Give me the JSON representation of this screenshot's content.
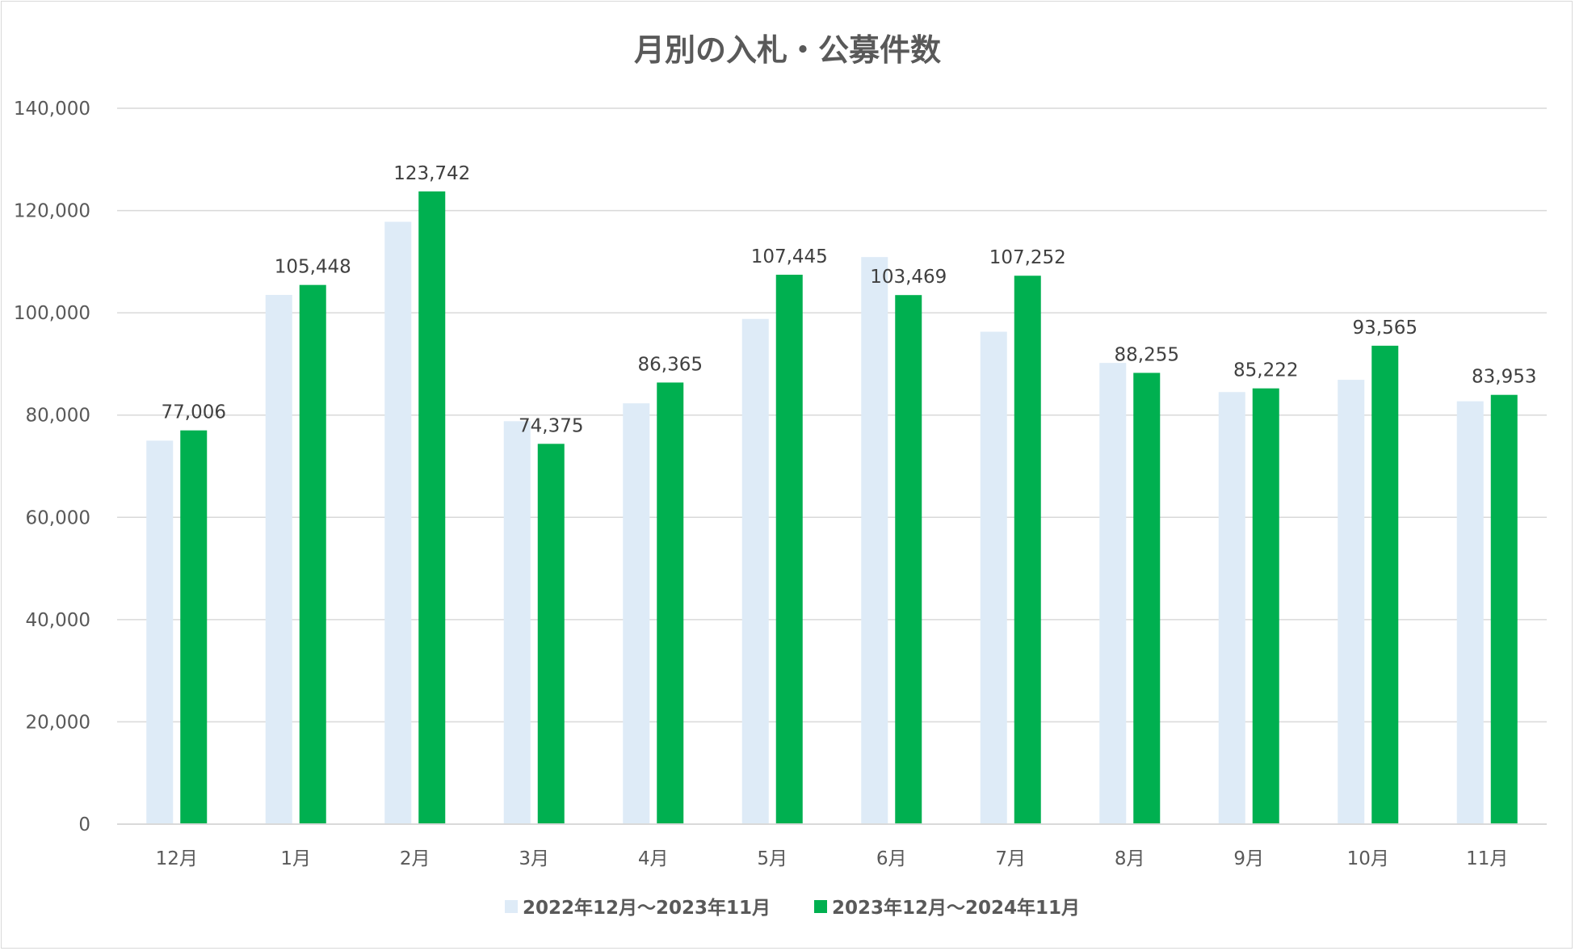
{
  "chart_data": {
    "type": "bar",
    "title": "月別の入札・公募件数",
    "categories": [
      "12月",
      "1月",
      "2月",
      "3月",
      "4月",
      "5月",
      "6月",
      "7月",
      "8月",
      "9月",
      "10月",
      "11月"
    ],
    "series": [
      {
        "name": "2022年12月～2023年11月",
        "color": "#deebf7",
        "values": [
          75000,
          103500,
          117800,
          78800,
          82300,
          98800,
          110900,
          96300,
          90200,
          84500,
          86900,
          82700
        ],
        "labels_shown": false
      },
      {
        "name": "2023年12月～2024年11月",
        "color": "#00b050",
        "values": [
          77006,
          105448,
          123742,
          74375,
          86365,
          107445,
          103469,
          107252,
          88255,
          85222,
          93565,
          83953
        ],
        "labels": [
          "77,006",
          "105,448",
          "123,742",
          "74,375",
          "86,365",
          "107,445",
          "103,469",
          "107,252",
          "88,255",
          "85,222",
          "93,565",
          "83,953"
        ],
        "labels_shown": true
      }
    ],
    "ylim": [
      0,
      140000
    ],
    "yticks": [
      0,
      20000,
      40000,
      60000,
      80000,
      100000,
      120000,
      140000
    ],
    "ytick_labels": [
      "0",
      "20,000",
      "40,000",
      "60,000",
      "80,000",
      "100,000",
      "120,000",
      "140,000"
    ],
    "xlabel": "",
    "ylabel": "",
    "grid": true,
    "legend_position": "bottom",
    "gridline_color": "#d9d9d9"
  }
}
